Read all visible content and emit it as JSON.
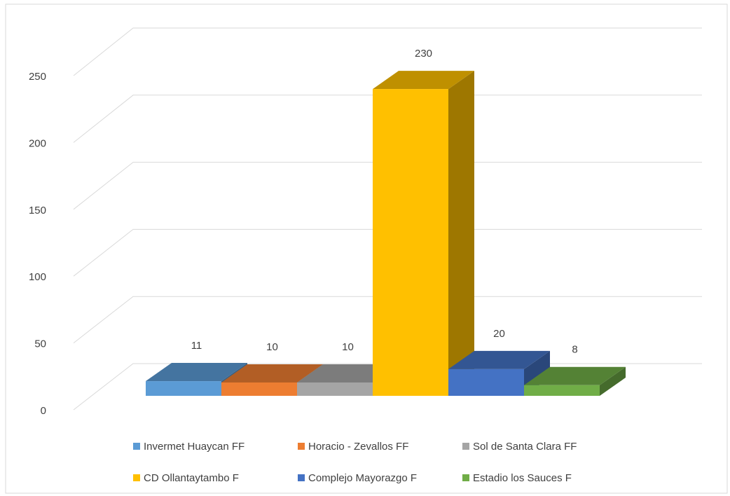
{
  "chart_data": {
    "type": "bar3d",
    "series": [
      {
        "name": "Invermet Huaycan FF",
        "color": "#5b9bd5",
        "values": [
          11
        ]
      },
      {
        "name": "Horacio - Zevallos FF",
        "color": "#ed7d31",
        "values": [
          10
        ]
      },
      {
        "name": "Sol de Santa Clara FF",
        "color": "#a5a5a5",
        "values": [
          10
        ]
      },
      {
        "name": "CD Ollantaytambo F",
        "color": "#ffc000",
        "values": [
          230
        ]
      },
      {
        "name": "Complejo Mayorazgo F",
        "color": "#4472c4",
        "values": [
          20
        ]
      },
      {
        "name": "Estadio los Sauces F",
        "color": "#70ad47",
        "values": [
          8
        ]
      }
    ],
    "ylim": [
      0,
      250
    ],
    "yticks": [
      0,
      50,
      100,
      150,
      200,
      250
    ],
    "grid": true,
    "legend": "bottom"
  }
}
